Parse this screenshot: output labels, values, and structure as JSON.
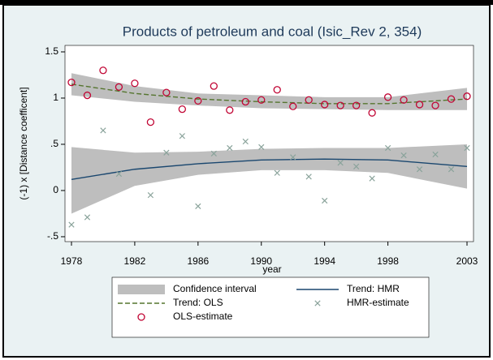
{
  "chart_data": {
    "type": "scatter",
    "title": "Products of petroleum and coal (Isic_Rev 2, 354)",
    "xlabel": "year",
    "ylabel": "(-1) x [Distance coefficent]",
    "xlim": [
      1977.59,
      2003.41
    ],
    "ylim": [
      -0.553,
      1.57
    ],
    "xticks": [
      1978,
      1982,
      1986,
      1990,
      1994,
      1998,
      2003
    ],
    "yticks": [
      {
        "value": 1.5,
        "label": "1.5"
      },
      1,
      {
        "value": 0.5,
        "label": ".5"
      },
      0,
      {
        "value": -0.5,
        "label": "-.5"
      }
    ],
    "x": [
      1978,
      1979,
      1980,
      1981,
      1982,
      1983,
      1984,
      1985,
      1986,
      1987,
      1988,
      1989,
      1990,
      1991,
      1992,
      1993,
      1994,
      1995,
      1996,
      1997,
      1998,
      1999,
      2000,
      2001,
      2002,
      2003
    ],
    "series": [
      {
        "name": "Confidence interval",
        "kind": "band",
        "color": "#bebebe",
        "bands": [
          {
            "x": [
              1978,
              1982,
              1986,
              1990,
              1994,
              1998,
              2003
            ],
            "lower": [
              -0.25,
              0.05,
              0.17,
              0.22,
              0.22,
              0.19,
              0.02
            ],
            "upper": [
              0.47,
              0.41,
              0.42,
              0.45,
              0.46,
              0.46,
              0.5
            ]
          },
          {
            "x": [
              1978,
              1982,
              1986,
              1990,
              1994,
              1998,
              2003
            ],
            "lower": [
              1.03,
              0.96,
              0.92,
              0.89,
              0.88,
              0.87,
              0.87
            ],
            "upper": [
              1.27,
              1.13,
              1.05,
              1.03,
              1.01,
              1.01,
              1.11
            ]
          }
        ]
      },
      {
        "name": "Trend: HMR",
        "kind": "line",
        "color": "#1a476f",
        "x": [
          1978,
          1982,
          1986,
          1990,
          1994,
          1998,
          2003
        ],
        "values": [
          0.12,
          0.23,
          0.29,
          0.33,
          0.34,
          0.33,
          0.26
        ]
      },
      {
        "name": "Trend: OLS",
        "kind": "dashed",
        "color": "#55752f",
        "x": [
          1978,
          1982,
          1986,
          1990,
          1994,
          1998,
          2003
        ],
        "values": [
          1.15,
          1.05,
          0.99,
          0.96,
          0.94,
          0.94,
          0.99
        ]
      },
      {
        "name": "HMR-estimate",
        "kind": "cross",
        "color": "#8aa39b",
        "values": [
          -0.37,
          -0.29,
          0.65,
          0.18,
          null,
          -0.05,
          0.41,
          0.59,
          -0.17,
          0.4,
          0.46,
          0.53,
          0.47,
          0.19,
          0.36,
          0.15,
          -0.11,
          0.3,
          0.26,
          0.13,
          0.46,
          0.38,
          0.23,
          0.39,
          0.23,
          0.46
        ]
      },
      {
        "name": "OLS-estimate",
        "kind": "circle",
        "color": "#c10534",
        "values": [
          1.17,
          1.03,
          1.3,
          1.12,
          1.16,
          0.74,
          1.06,
          0.88,
          0.97,
          1.13,
          0.87,
          0.96,
          0.98,
          1.09,
          0.91,
          0.98,
          0.93,
          0.92,
          0.92,
          0.84,
          1.01,
          0.98,
          0.93,
          0.92,
          0.99,
          1.02
        ]
      }
    ]
  }
}
